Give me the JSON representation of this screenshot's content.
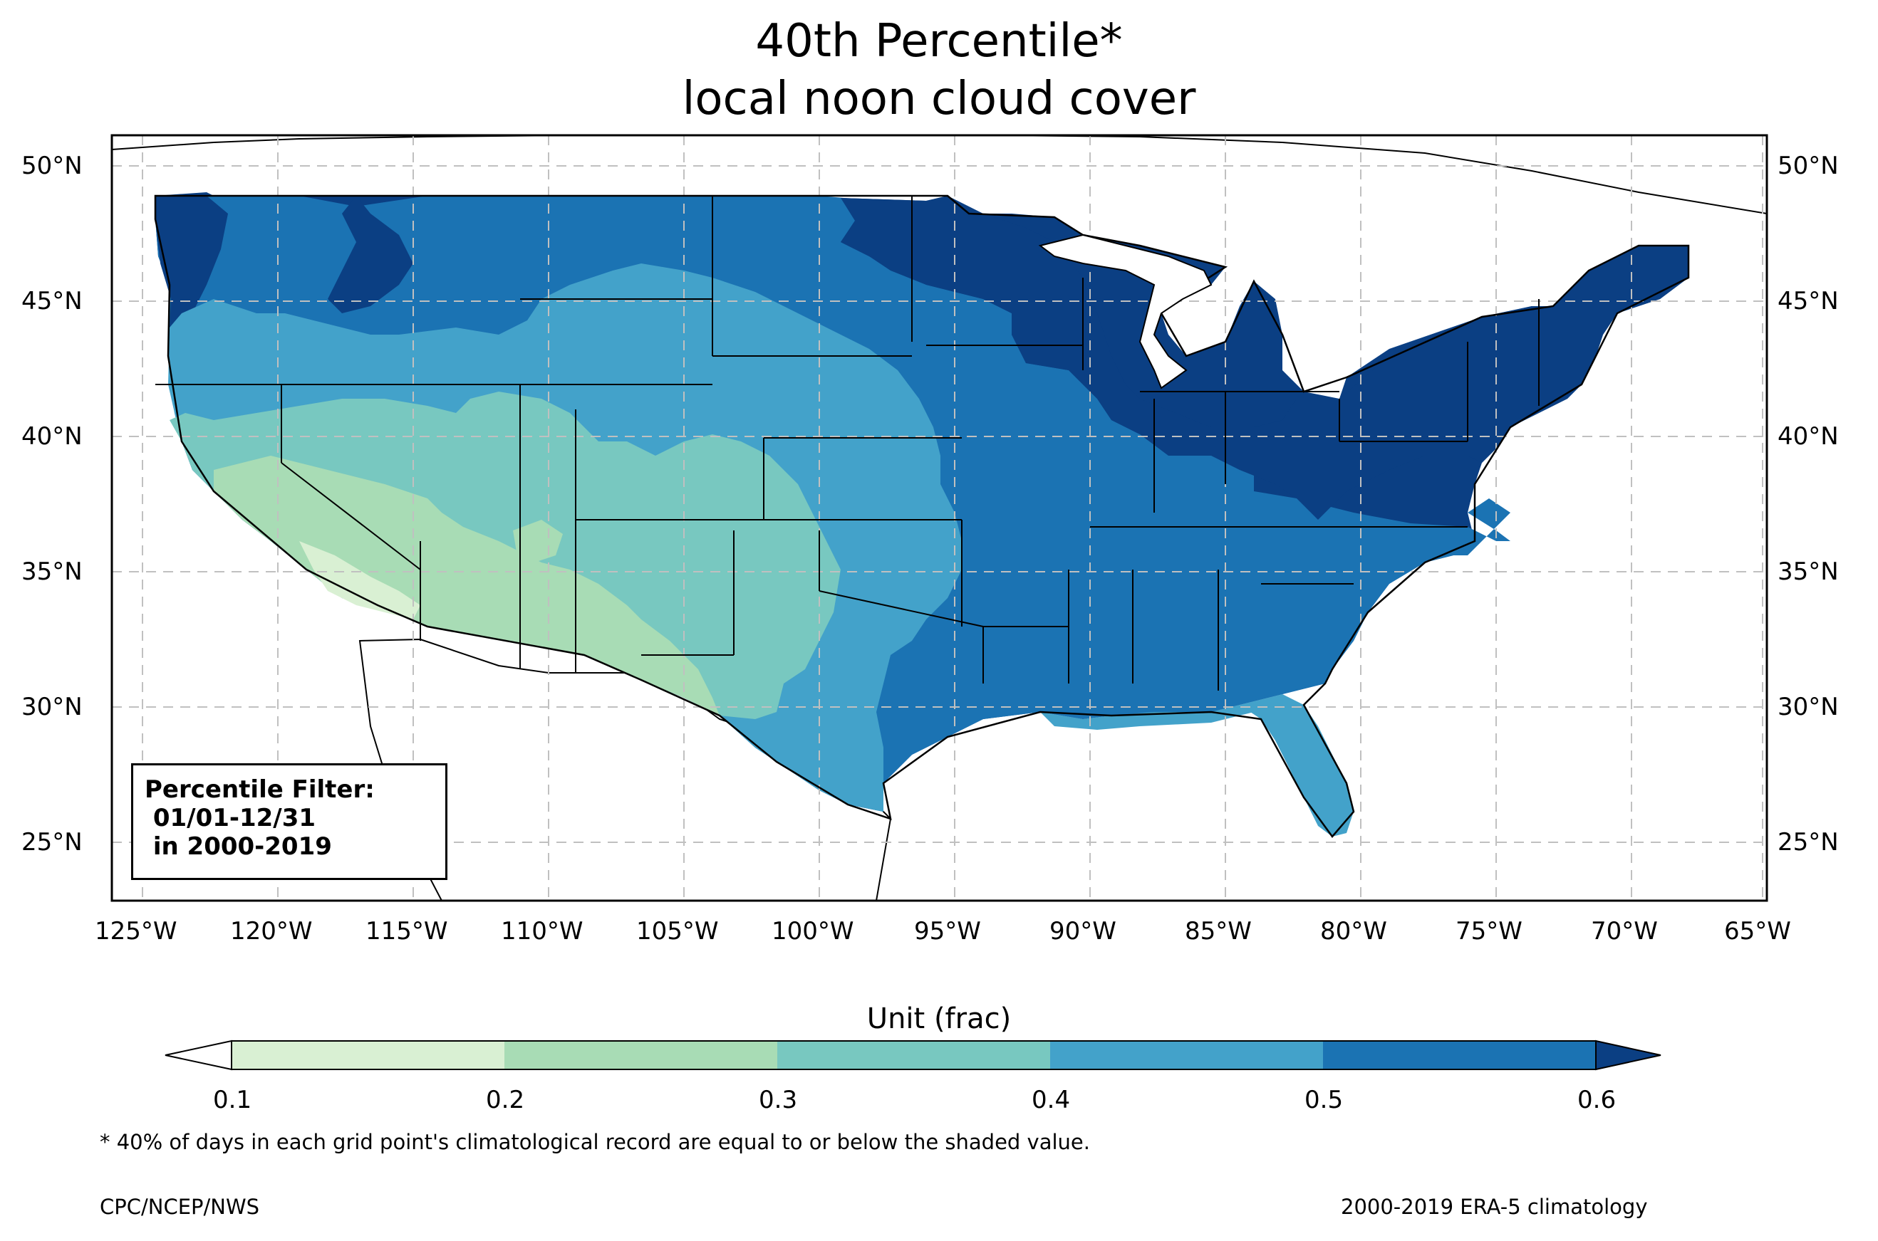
{
  "title": {
    "line1": "40th Percentile*",
    "line2": "local noon cloud cover"
  },
  "map": {
    "longitude_labels": [
      "125°W",
      "120°W",
      "115°W",
      "110°W",
      "105°W",
      "100°W",
      "95°W",
      "90°W",
      "85°W",
      "80°W",
      "75°W",
      "70°W",
      "65°W"
    ],
    "latitude_labels": [
      "50°N",
      "45°N",
      "40°N",
      "35°N",
      "30°N",
      "25°N"
    ],
    "extent": {
      "lon": [
        -126.2,
        -64.8
      ],
      "lat": [
        22.8,
        51.2
      ]
    },
    "filter_box": {
      "line1": "Percentile Filter:",
      "line2": " 01/01-12/31",
      "line3": " in 2000-2019"
    }
  },
  "colorbar": {
    "label": "Unit (frac)",
    "ticks": [
      "0.1",
      "0.2",
      "0.3",
      "0.4",
      "0.5",
      "0.6"
    ],
    "bins": [
      {
        "range": "<0.1",
        "color": "#ffffff"
      },
      {
        "range": "0.1-0.2",
        "color": "#d9f0d3"
      },
      {
        "range": "0.2-0.3",
        "color": "#a8dcb5"
      },
      {
        "range": "0.3-0.4",
        "color": "#78c8c0"
      },
      {
        "range": "0.4-0.5",
        "color": "#43a2ca"
      },
      {
        "range": "0.5-0.6",
        "color": "#1b73b3"
      },
      {
        "range": ">0.6",
        "color": "#0b3f83"
      }
    ]
  },
  "footnote": "* 40% of days in each grid point's climatological record are equal to or below the shaded value.",
  "credit_left": "CPC/NCEP/NWS",
  "credit_right": "2000-2019 ERA-5 climatology"
}
